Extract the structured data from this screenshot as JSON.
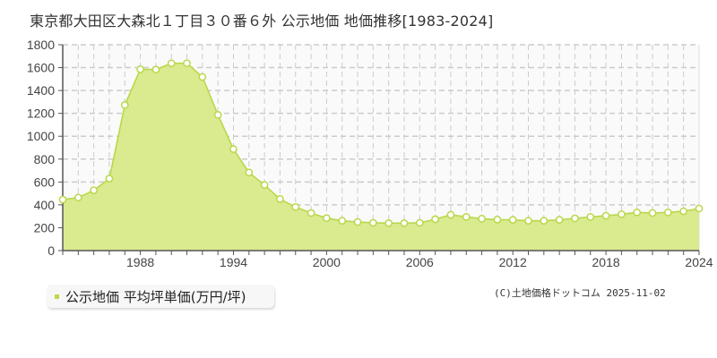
{
  "title": "東京都大田区大森北１丁目３０番６外 公示地価 地価推移[1983-2024]",
  "legend": {
    "label": "公示地価 平均坪単価(万円/坪)",
    "swatch_color": "#b9d84a"
  },
  "copyright": "(C)土地価格ドットコム 2025-11-02",
  "colors": {
    "line": "#b9d84a",
    "fill": "#d9ea8f",
    "plot_bg": "#fafafa",
    "grid": "#cccccc",
    "axis": "#555555"
  },
  "chart_data": {
    "type": "area",
    "title": "東京都大田区大森北１丁目３０番６外 公示地価 地価推移[1983-2024]",
    "xlabel": "",
    "ylabel": "",
    "ylim": [
      0,
      1800
    ],
    "xlim": [
      1983,
      2024
    ],
    "y_ticks": [
      0,
      200,
      400,
      600,
      800,
      1000,
      1200,
      1400,
      1600,
      1800
    ],
    "x_tick_labels": [
      "1988",
      "1994",
      "2000",
      "2006",
      "2012",
      "2018",
      "2024"
    ],
    "grid": true,
    "legend_position": "bottom-left",
    "x": [
      1983,
      1984,
      1985,
      1986,
      1987,
      1988,
      1989,
      1990,
      1991,
      1992,
      1993,
      1994,
      1995,
      1996,
      1997,
      1998,
      1999,
      2000,
      2001,
      2002,
      2003,
      2004,
      2005,
      2006,
      2007,
      2008,
      2009,
      2010,
      2011,
      2012,
      2013,
      2014,
      2015,
      2016,
      2017,
      2018,
      2019,
      2020,
      2021,
      2022,
      2023,
      2024
    ],
    "series": [
      {
        "name": "公示地価 平均坪単価(万円/坪)",
        "values": [
          446,
          464,
          527,
          630,
          1273,
          1586,
          1583,
          1638,
          1638,
          1518,
          1187,
          887,
          683,
          574,
          451,
          381,
          329,
          284,
          261,
          250,
          243,
          240,
          240,
          243,
          274,
          313,
          295,
          279,
          271,
          269,
          261,
          261,
          269,
          282,
          295,
          305,
          318,
          334,
          329,
          334,
          344,
          368
        ]
      }
    ]
  }
}
